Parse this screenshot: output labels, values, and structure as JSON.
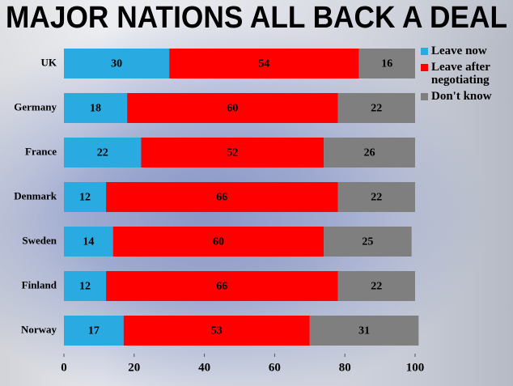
{
  "chart_data": {
    "type": "stacked-bar-horizontal",
    "title": "MAJOR NATIONS ALL BACK A DEAL",
    "categories": [
      "UK",
      "Germany",
      "France",
      "Denmark",
      "Sweden",
      "Finland",
      "Norway"
    ],
    "series": [
      {
        "name": "Leave now",
        "color": "#29abe2",
        "values": [
          30,
          18,
          22,
          12,
          14,
          12,
          17
        ]
      },
      {
        "name": "Leave after negotiating",
        "color": "#ff0000",
        "values": [
          54,
          60,
          52,
          66,
          60,
          66,
          53
        ]
      },
      {
        "name": "Don't know",
        "color": "#7f7f7f",
        "values": [
          16,
          22,
          26,
          22,
          25,
          22,
          31
        ]
      }
    ],
    "xlim": [
      0,
      100
    ],
    "xticks": [
      0,
      20,
      40,
      60,
      80,
      100
    ]
  }
}
